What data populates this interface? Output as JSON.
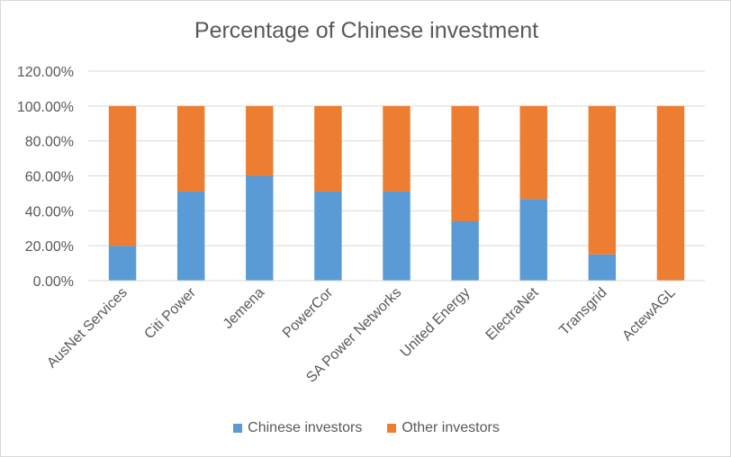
{
  "chart_data": {
    "type": "bar",
    "stacked": true,
    "title": "Percentage of Chinese investment",
    "xlabel": "",
    "ylabel": "",
    "categories": [
      "AusNet Services",
      "Citi Power",
      "Jemena",
      "PowerCor",
      "SA Power Networks",
      "United Energy",
      "ElectraNet",
      "Transgrid",
      "ActewAGL"
    ],
    "series": [
      {
        "name": "Chinese investors",
        "color": "#5b9bd5",
        "values": [
          0.199,
          0.51,
          0.6,
          0.51,
          0.51,
          0.34,
          0.468,
          0.15,
          0.0
        ]
      },
      {
        "name": "Other investors",
        "color": "#ed7d31",
        "values": [
          0.801,
          0.49,
          0.4,
          0.49,
          0.49,
          0.66,
          0.532,
          0.85,
          1.0
        ]
      }
    ],
    "ylim": [
      0,
      1.2
    ],
    "yticks": [
      "0.00%",
      "20.00%",
      "40.00%",
      "60.00%",
      "80.00%",
      "100.00%",
      "120.00%"
    ],
    "ytick_values": [
      0,
      0.2,
      0.4,
      0.6,
      0.8,
      1.0,
      1.2
    ],
    "grid": true,
    "legend_position": "bottom"
  }
}
